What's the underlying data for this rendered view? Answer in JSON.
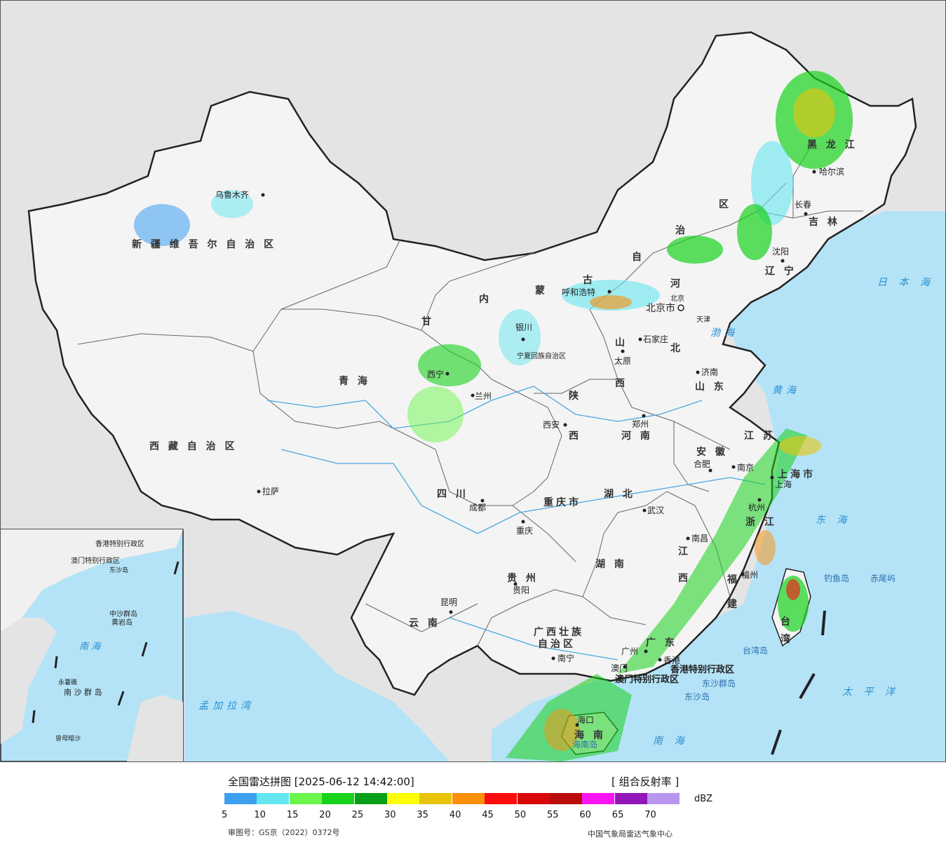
{
  "map": {
    "provinces": [
      {
        "id": "xinjiang",
        "label": "新 疆 维 吾 尔 自 治 区"
      },
      {
        "id": "xizang",
        "label": "西 藏 自 治 区"
      },
      {
        "id": "qinghai",
        "label": "青          海"
      },
      {
        "id": "gansu",
        "label": "甘"
      },
      {
        "id": "neimenggu_1",
        "label": "内"
      },
      {
        "id": "neimenggu_2",
        "label": "蒙"
      },
      {
        "id": "neimenggu_3",
        "label": "古"
      },
      {
        "id": "neimenggu_4",
        "label": "自"
      },
      {
        "id": "neimenggu_5",
        "label": "治"
      },
      {
        "id": "neimenggu_6",
        "label": "区"
      },
      {
        "id": "heilongjiang",
        "label": "黑  龙  江"
      },
      {
        "id": "jilin",
        "label": "吉  林"
      },
      {
        "id": "liaoning",
        "label": "辽  宁"
      },
      {
        "id": "hebei_1",
        "label": "河"
      },
      {
        "id": "hebei_2",
        "label": "北"
      },
      {
        "id": "shanxi_1",
        "label": "山"
      },
      {
        "id": "shanxi_2",
        "label": "西"
      },
      {
        "id": "shandong",
        "label": "山  东"
      },
      {
        "id": "shaanxi_1",
        "label": "陕"
      },
      {
        "id": "shaanxi_2",
        "label": "西"
      },
      {
        "id": "henan",
        "label": "河  南"
      },
      {
        "id": "sichuan",
        "label": "四     川"
      },
      {
        "id": "chongqing",
        "label": "重庆市"
      },
      {
        "id": "hubei",
        "label": "湖     北"
      },
      {
        "id": "anhui",
        "label": "安  徽"
      },
      {
        "id": "jiangsu",
        "label": "江  苏"
      },
      {
        "id": "shanghai",
        "label": "上海市"
      },
      {
        "id": "zhejiang",
        "label": "浙  江"
      },
      {
        "id": "jiangxi_1",
        "label": "江"
      },
      {
        "id": "jiangxi_2",
        "label": "西"
      },
      {
        "id": "hunan",
        "label": "湖     南"
      },
      {
        "id": "guizhou",
        "label": "贵  州"
      },
      {
        "id": "yunnan",
        "label": "云   南"
      },
      {
        "id": "guangxi_1",
        "label": "广西壮族"
      },
      {
        "id": "guangxi_2",
        "label": "自治区"
      },
      {
        "id": "guangdong",
        "label": "广  东"
      },
      {
        "id": "fujian_1",
        "label": "福"
      },
      {
        "id": "fujian_2",
        "label": "建"
      },
      {
        "id": "taiwan_1",
        "label": "台"
      },
      {
        "id": "taiwan_2",
        "label": "湾"
      },
      {
        "id": "ningxia",
        "label": "宁夏回族自治区"
      },
      {
        "id": "tianjin",
        "label": "天津"
      },
      {
        "id": "beijing",
        "label": "北京"
      },
      {
        "id": "hongkong",
        "label": "香港特别行政区"
      },
      {
        "id": "macau",
        "label": "澳门特别行政区"
      },
      {
        "id": "hainan",
        "label": "海  南"
      }
    ],
    "cities": [
      {
        "id": "urumqi",
        "label": "乌鲁木齐"
      },
      {
        "id": "lhasa",
        "label": "拉萨"
      },
      {
        "id": "xining",
        "label": "西宁"
      },
      {
        "id": "lanzhou",
        "label": "兰州"
      },
      {
        "id": "yinchuan",
        "label": "银川"
      },
      {
        "id": "hohhot",
        "label": "呼和浩特"
      },
      {
        "id": "harbin",
        "label": "哈尔滨"
      },
      {
        "id": "changchun",
        "label": "长春"
      },
      {
        "id": "shenyang",
        "label": "沈阳"
      },
      {
        "id": "beijing_city",
        "label": "北京市"
      },
      {
        "id": "shijiazhuang",
        "label": "石家庄"
      },
      {
        "id": "taiyuan",
        "label": "太原"
      },
      {
        "id": "jinan",
        "label": "济南"
      },
      {
        "id": "xian",
        "label": "西安"
      },
      {
        "id": "zhengzhou",
        "label": "郑州"
      },
      {
        "id": "chengdu",
        "label": "成都"
      },
      {
        "id": "chongqing_city",
        "label": "重庆"
      },
      {
        "id": "wuhan",
        "label": "武汉"
      },
      {
        "id": "hefei",
        "label": "合肥"
      },
      {
        "id": "nanjing",
        "label": "南京"
      },
      {
        "id": "shanghai_city",
        "label": "上海"
      },
      {
        "id": "hangzhou",
        "label": "杭州"
      },
      {
        "id": "nanchang",
        "label": "南昌"
      },
      {
        "id": "fuzhou",
        "label": "福州"
      },
      {
        "id": "guiyang",
        "label": "贵阳"
      },
      {
        "id": "kunming",
        "label": "昆明"
      },
      {
        "id": "nanning",
        "label": "南宁"
      },
      {
        "id": "guangzhou",
        "label": "广州"
      },
      {
        "id": "hongkong_city",
        "label": "香港"
      },
      {
        "id": "macau_city",
        "label": "澳门"
      },
      {
        "id": "haikou",
        "label": "海口"
      },
      {
        "id": "taipei",
        "label": "台湾岛"
      },
      {
        "id": "diaoyu",
        "label": "钓鱼岛"
      },
      {
        "id": "chiwei",
        "label": "赤尾屿"
      },
      {
        "id": "dongsha",
        "label": "东沙群岛"
      },
      {
        "id": "dongsha_island",
        "label": "东沙岛"
      },
      {
        "id": "hainan_island",
        "label": "海南岛"
      }
    ],
    "seas": [
      {
        "id": "bohai",
        "label": "渤海"
      },
      {
        "id": "yellow_sea",
        "label": "黄海"
      },
      {
        "id": "east_sea",
        "label": "东 海"
      },
      {
        "id": "sea_of_japan",
        "label": "日 本 海"
      },
      {
        "id": "pacific",
        "label": "太 平 洋"
      },
      {
        "id": "south_sea",
        "label": "南   海"
      },
      {
        "id": "bay_of_bengal",
        "label": "孟加拉湾"
      }
    ],
    "inset": {
      "labels": [
        {
          "id": "inset_south_sea",
          "label": "南   海"
        },
        {
          "id": "inset_zhongsha",
          "label": "中沙群岛"
        },
        {
          "id": "inset_huangyan",
          "label": "黄岩岛"
        },
        {
          "id": "inset_nansha",
          "label": "南 沙 群 岛"
        },
        {
          "id": "inset_yongshu",
          "label": "永暑礁"
        },
        {
          "id": "inset_zengmu",
          "label": "曾母暗沙"
        },
        {
          "id": "inset_hk",
          "label": "香港特别行政区"
        },
        {
          "id": "inset_macau",
          "label": "澳门特别行政区"
        },
        {
          "id": "inset_dongsha",
          "label": "东沙岛"
        }
      ]
    },
    "colors": {
      "land": "#f2f2f2",
      "sea": "#b4e3f7",
      "border": "#222222",
      "foreign": "#e4e4e4",
      "river": "#4aa8df"
    }
  },
  "legend": {
    "title": "全国雷达拼图 [2025-06-12 14:42:00]",
    "product": "[ 组合反射率 ]",
    "unit": "dBZ",
    "ticks": [
      "5",
      "10",
      "15",
      "20",
      "25",
      "30",
      "35",
      "40",
      "45",
      "50",
      "55",
      "60",
      "65",
      "70"
    ],
    "colors": [
      "#3d9ff0",
      "#64e6f0",
      "#6cf54b",
      "#18d21c",
      "#06a018",
      "#fdfd08",
      "#e8c40a",
      "#fb900a",
      "#fc0c0c",
      "#d90808",
      "#bb0c0c",
      "#f914f4",
      "#9316b8",
      "#b996ee"
    ],
    "approval": "审图号：GS京（2022）0372号",
    "source": "中国气象局雷达气象中心"
  }
}
